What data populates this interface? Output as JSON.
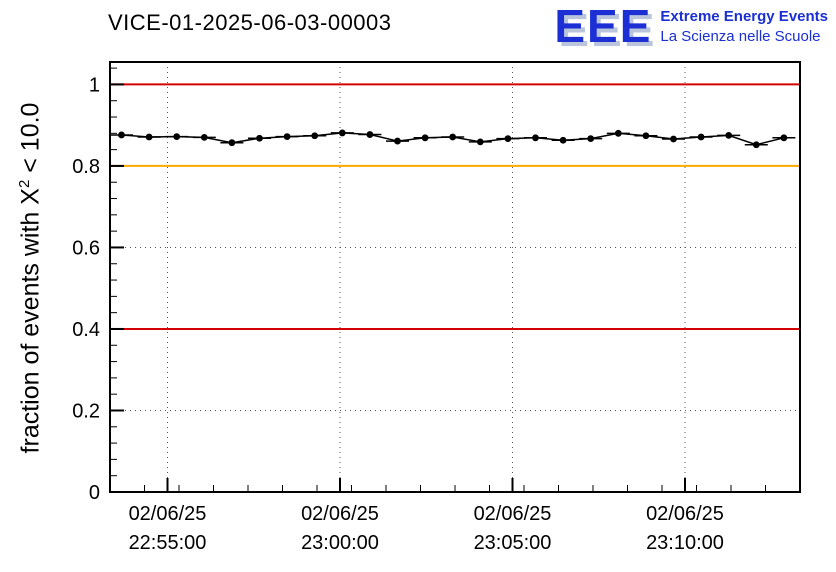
{
  "header": {
    "logo": {
      "text": "EEE",
      "line1": "Extreme Energy Events",
      "line2": "La Scienza nelle Scuole",
      "color": "#1b2fd4"
    }
  },
  "chart_data": {
    "type": "line",
    "title": "VICE-01-2025-06-03-00003",
    "ylabel": "fraction of events with X^2 < 10.0",
    "ylabel_parts": {
      "pre": "fraction of events with X",
      "sup": "2",
      "post": " < 10.0"
    },
    "ylim": [
      0,
      1.055
    ],
    "yticks": [
      0,
      0.2,
      0.4,
      0.6,
      0.8,
      1
    ],
    "ytick_labels": [
      "0",
      "0.2",
      "0.4",
      "0.6",
      "0.8",
      "1"
    ],
    "xlim": [
      0,
      1200
    ],
    "xticks": [
      {
        "t": 100,
        "date": "02/06/25",
        "time": "22:55:00"
      },
      {
        "t": 400,
        "date": "02/06/25",
        "time": "23:00:00"
      },
      {
        "t": 700,
        "date": "02/06/25",
        "time": "23:05:00"
      },
      {
        "t": 1000,
        "date": "02/06/25",
        "time": "23:10:00"
      }
    ],
    "grid": true,
    "legend": "none",
    "reference_lines": [
      {
        "y": 1.0,
        "color": "#d40000",
        "width": 2
      },
      {
        "y": 0.8,
        "color": "#ffaa00",
        "width": 2
      },
      {
        "y": 0.4,
        "color": "#d40000",
        "width": 2
      }
    ],
    "series": [
      {
        "name": "fraction of events with X^2 < 10.0",
        "color": "#000000",
        "marker": "dot",
        "xerr": 20,
        "yerr": 0.005,
        "x": [
          20,
          68,
          116,
          164,
          212,
          260,
          308,
          356,
          404,
          452,
          500,
          548,
          596,
          644,
          692,
          740,
          788,
          836,
          884,
          932,
          980,
          1028,
          1076,
          1124,
          1172
        ],
        "y": [
          0.876,
          0.871,
          0.872,
          0.87,
          0.857,
          0.868,
          0.872,
          0.874,
          0.881,
          0.877,
          0.861,
          0.869,
          0.871,
          0.859,
          0.867,
          0.869,
          0.863,
          0.867,
          0.88,
          0.874,
          0.866,
          0.871,
          0.875,
          0.852,
          0.869
        ]
      }
    ]
  }
}
